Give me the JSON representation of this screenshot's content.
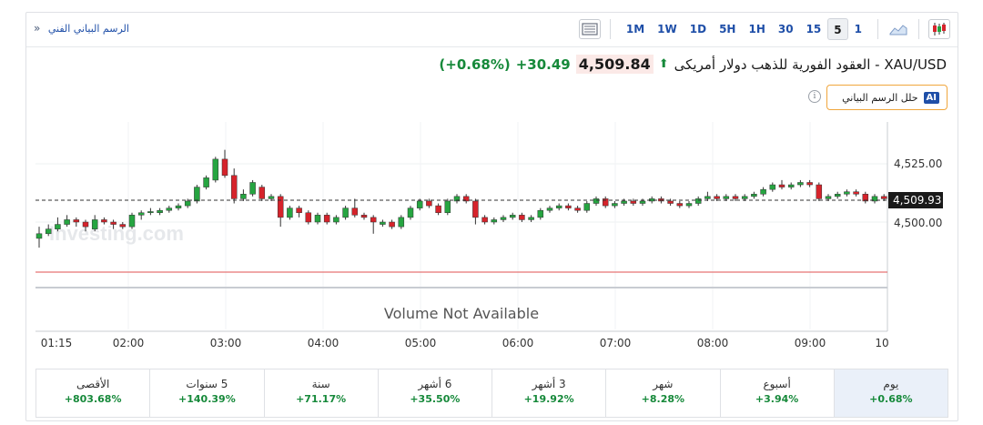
{
  "topbar": {
    "tech_chart_link": "الرسم البياني الفني",
    "timeframes": [
      "1M",
      "1W",
      "1D",
      "5H",
      "1H",
      "30",
      "15",
      "5",
      "1"
    ],
    "active_timeframe": "5"
  },
  "header": {
    "instrument": "XAU/USD - العقود الفورية للذهب دولار أمريكى",
    "price": "4,509.84",
    "change": "+30.49",
    "change_pct": "(+0.68%)",
    "up_color": "#16893a"
  },
  "ai_button": {
    "badge": "AI",
    "label": "حلل الرسم البياني"
  },
  "chart": {
    "watermark": "Investing.com",
    "volume_text": "Volume Not Available",
    "current_price_label": "4,509.93",
    "y_ticks": [
      "4,525.00",
      "4,500.00"
    ],
    "x_ticks": [
      "01:15",
      "02:00",
      "03:00",
      "04:00",
      "05:00",
      "06:00",
      "07:00",
      "08:00",
      "09:00",
      "10"
    ]
  },
  "chart_data": {
    "type": "candlestick",
    "y_ticks": [
      4525,
      4500
    ],
    "current_price": 4509.93,
    "up_color": "#26a541",
    "down_color": "#d6232b",
    "candles": [
      {
        "o": 4493,
        "c": 4495,
        "h": 4498,
        "l": 4489
      },
      {
        "o": 4495,
        "c": 4497,
        "h": 4499,
        "l": 4494
      },
      {
        "o": 4497,
        "c": 4499,
        "h": 4502,
        "l": 4496
      },
      {
        "o": 4499,
        "c": 4501,
        "h": 4503,
        "l": 4498
      },
      {
        "o": 4501,
        "c": 4500,
        "h": 4502,
        "l": 4498
      },
      {
        "o": 4500,
        "c": 4498,
        "h": 4501,
        "l": 4496
      },
      {
        "o": 4497,
        "c": 4501,
        "h": 4503,
        "l": 4496
      },
      {
        "o": 4501,
        "c": 4500,
        "h": 4502,
        "l": 4499
      },
      {
        "o": 4500,
        "c": 4499,
        "h": 4501,
        "l": 4497
      },
      {
        "o": 4499,
        "c": 4498,
        "h": 4500,
        "l": 4497
      },
      {
        "o": 4498,
        "c": 4503,
        "h": 4504,
        "l": 4497
      },
      {
        "o": 4503,
        "c": 4504,
        "h": 4505,
        "l": 4501
      },
      {
        "o": 4504,
        "c": 4504.5,
        "h": 4506,
        "l": 4503
      },
      {
        "o": 4504,
        "c": 4505,
        "h": 4506,
        "l": 4503
      },
      {
        "o": 4505,
        "c": 4506,
        "h": 4507,
        "l": 4504
      },
      {
        "o": 4506,
        "c": 4507,
        "h": 4508,
        "l": 4505
      },
      {
        "o": 4507,
        "c": 4509,
        "h": 4510,
        "l": 4506
      },
      {
        "o": 4509,
        "c": 4515,
        "h": 4516,
        "l": 4508
      },
      {
        "o": 4515,
        "c": 4519,
        "h": 4520,
        "l": 4514
      },
      {
        "o": 4518,
        "c": 4527,
        "h": 4528,
        "l": 4517
      },
      {
        "o": 4527,
        "c": 4520,
        "h": 4531,
        "l": 4519
      },
      {
        "o": 4520,
        "c": 4510,
        "h": 4523,
        "l": 4508
      },
      {
        "o": 4510,
        "c": 4512,
        "h": 4514,
        "l": 4509
      },
      {
        "o": 4512,
        "c": 4517,
        "h": 4518,
        "l": 4511
      },
      {
        "o": 4515,
        "c": 4510,
        "h": 4516,
        "l": 4509
      },
      {
        "o": 4510,
        "c": 4511,
        "h": 4512,
        "l": 4509
      },
      {
        "o": 4511,
        "c": 4502,
        "h": 4512,
        "l": 4498
      },
      {
        "o": 4502,
        "c": 4506,
        "h": 4507,
        "l": 4501
      },
      {
        "o": 4506,
        "c": 4504,
        "h": 4507,
        "l": 4502
      },
      {
        "o": 4504,
        "c": 4500,
        "h": 4505,
        "l": 4499
      },
      {
        "o": 4500,
        "c": 4503,
        "h": 4504,
        "l": 4499
      },
      {
        "o": 4503,
        "c": 4500,
        "h": 4504,
        "l": 4499
      },
      {
        "o": 4500,
        "c": 4502,
        "h": 4503,
        "l": 4499
      },
      {
        "o": 4502,
        "c": 4506,
        "h": 4507,
        "l": 4501
      },
      {
        "o": 4506,
        "c": 4503,
        "h": 4510,
        "l": 4502
      },
      {
        "o": 4503,
        "c": 4502,
        "h": 4504,
        "l": 4501
      },
      {
        "o": 4502,
        "c": 4500,
        "h": 4503,
        "l": 4495
      },
      {
        "o": 4499,
        "c": 4500,
        "h": 4501,
        "l": 4498
      },
      {
        "o": 4500,
        "c": 4498,
        "h": 4501,
        "l": 4497
      },
      {
        "o": 4498,
        "c": 4502,
        "h": 4503,
        "l": 4497
      },
      {
        "o": 4502,
        "c": 4506,
        "h": 4507,
        "l": 4501
      },
      {
        "o": 4506,
        "c": 4509,
        "h": 4510,
        "l": 4505
      },
      {
        "o": 4509,
        "c": 4507,
        "h": 4510,
        "l": 4506
      },
      {
        "o": 4507,
        "c": 4504,
        "h": 4508,
        "l": 4503
      },
      {
        "o": 4504,
        "c": 4509,
        "h": 4510,
        "l": 4503
      },
      {
        "o": 4509,
        "c": 4511,
        "h": 4512,
        "l": 4508
      },
      {
        "o": 4511,
        "c": 4509,
        "h": 4512,
        "l": 4508
      },
      {
        "o": 4509,
        "c": 4502,
        "h": 4510,
        "l": 4499
      },
      {
        "o": 4502,
        "c": 4500,
        "h": 4503,
        "l": 4499
      },
      {
        "o": 4500,
        "c": 4501,
        "h": 4502,
        "l": 4499
      },
      {
        "o": 4501,
        "c": 4502,
        "h": 4503,
        "l": 4500
      },
      {
        "o": 4502,
        "c": 4503,
        "h": 4504,
        "l": 4501
      },
      {
        "o": 4503,
        "c": 4501,
        "h": 4504,
        "l": 4500
      },
      {
        "o": 4501,
        "c": 4502,
        "h": 4503,
        "l": 4500
      },
      {
        "o": 4502,
        "c": 4505,
        "h": 4506,
        "l": 4501
      },
      {
        "o": 4505,
        "c": 4506,
        "h": 4507,
        "l": 4504
      },
      {
        "o": 4506,
        "c": 4507,
        "h": 4508,
        "l": 4505
      },
      {
        "o": 4507,
        "c": 4506,
        "h": 4508,
        "l": 4505
      },
      {
        "o": 4506,
        "c": 4505,
        "h": 4507,
        "l": 4504
      },
      {
        "o": 4505,
        "c": 4508,
        "h": 4509,
        "l": 4504
      },
      {
        "o": 4508,
        "c": 4510,
        "h": 4511,
        "l": 4507
      },
      {
        "o": 4510,
        "c": 4507,
        "h": 4511,
        "l": 4506
      },
      {
        "o": 4507,
        "c": 4508,
        "h": 4509,
        "l": 4506
      },
      {
        "o": 4508,
        "c": 4509,
        "h": 4510,
        "l": 4507
      },
      {
        "o": 4509,
        "c": 4508,
        "h": 4510,
        "l": 4507
      },
      {
        "o": 4508,
        "c": 4509,
        "h": 4510,
        "l": 4507
      },
      {
        "o": 4509,
        "c": 4510,
        "h": 4511,
        "l": 4508
      },
      {
        "o": 4510,
        "c": 4509,
        "h": 4511,
        "l": 4508
      },
      {
        "o": 4509,
        "c": 4508,
        "h": 4510,
        "l": 4507
      },
      {
        "o": 4508,
        "c": 4507,
        "h": 4509,
        "l": 4506
      },
      {
        "o": 4507,
        "c": 4508,
        "h": 4509,
        "l": 4506
      },
      {
        "o": 4508,
        "c": 4510,
        "h": 4511,
        "l": 4507
      },
      {
        "o": 4510,
        "c": 4511,
        "h": 4513,
        "l": 4509
      },
      {
        "o": 4511,
        "c": 4510,
        "h": 4512,
        "l": 4509
      },
      {
        "o": 4510,
        "c": 4511,
        "h": 4512,
        "l": 4509
      },
      {
        "o": 4511,
        "c": 4510,
        "h": 4512,
        "l": 4509
      },
      {
        "o": 4510,
        "c": 4511,
        "h": 4512,
        "l": 4509
      },
      {
        "o": 4511,
        "c": 4512,
        "h": 4513,
        "l": 4510
      },
      {
        "o": 4512,
        "c": 4514,
        "h": 4515,
        "l": 4511
      },
      {
        "o": 4514,
        "c": 4516,
        "h": 4517,
        "l": 4513
      },
      {
        "o": 4516,
        "c": 4515,
        "h": 4518,
        "l": 4514
      },
      {
        "o": 4515,
        "c": 4516,
        "h": 4517,
        "l": 4514
      },
      {
        "o": 4516,
        "c": 4517,
        "h": 4518,
        "l": 4515
      },
      {
        "o": 4517,
        "c": 4516,
        "h": 4518,
        "l": 4515
      },
      {
        "o": 4516,
        "c": 4510,
        "h": 4517,
        "l": 4509
      },
      {
        "o": 4510,
        "c": 4511,
        "h": 4512,
        "l": 4509
      },
      {
        "o": 4511,
        "c": 4512,
        "h": 4513,
        "l": 4510
      },
      {
        "o": 4512,
        "c": 4513,
        "h": 4514,
        "l": 4511
      },
      {
        "o": 4513,
        "c": 4512,
        "h": 4514,
        "l": 4511
      },
      {
        "o": 4512,
        "c": 4509,
        "h": 4513,
        "l": 4508
      },
      {
        "o": 4509,
        "c": 4511,
        "h": 4512,
        "l": 4508
      },
      {
        "o": 4511,
        "c": 4510,
        "h": 4512,
        "l": 4509
      }
    ]
  },
  "performance": [
    {
      "label": "يوم",
      "value": "+0.68%",
      "active": true
    },
    {
      "label": "أسبوع",
      "value": "+3.94%"
    },
    {
      "label": "شهر",
      "value": "+8.28%"
    },
    {
      "label": "3 أشهر",
      "value": "+19.92%"
    },
    {
      "label": "6 أشهر",
      "value": "+35.50%"
    },
    {
      "label": "سنة",
      "value": "+71.17%"
    },
    {
      "label": "5 سنوات",
      "value": "+140.39%"
    },
    {
      "label": "الأقصى",
      "value": "+803.68%"
    }
  ]
}
